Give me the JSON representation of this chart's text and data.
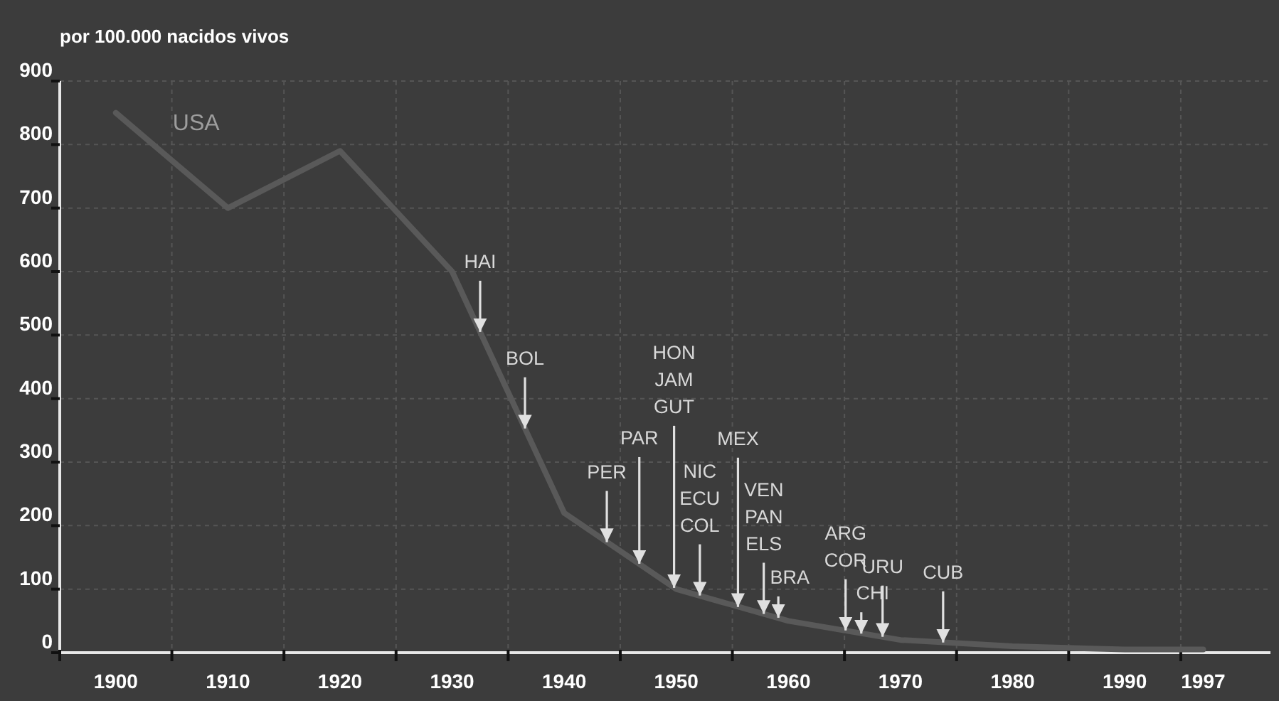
{
  "chart_data": {
    "type": "line",
    "ylabel": "por 100.000 nacidos vivos",
    "x": [
      1900,
      1910,
      1920,
      1930,
      1940,
      1950,
      1960,
      1970,
      1980,
      1990,
      1997
    ],
    "series": [
      {
        "name": "USA",
        "color": "#595959",
        "values": [
          850,
          700,
          790,
          600,
          220,
          100,
          50,
          20,
          10,
          5,
          5
        ]
      }
    ],
    "xlim": [
      1895,
      2003
    ],
    "xticks": [
      {
        "value": 1895,
        "label": null
      },
      {
        "value": 1900,
        "label": "1900"
      },
      {
        "value": 1905,
        "label": null
      },
      {
        "value": 1910,
        "label": "1910"
      },
      {
        "value": 1915,
        "label": null
      },
      {
        "value": 1920,
        "label": "1920"
      },
      {
        "value": 1925,
        "label": null
      },
      {
        "value": 1930,
        "label": "1930"
      },
      {
        "value": 1935,
        "label": null
      },
      {
        "value": 1940,
        "label": "1940"
      },
      {
        "value": 1945,
        "label": null
      },
      {
        "value": 1950,
        "label": "1950"
      },
      {
        "value": 1955,
        "label": null
      },
      {
        "value": 1960,
        "label": "1960"
      },
      {
        "value": 1965,
        "label": null
      },
      {
        "value": 1970,
        "label": "1970"
      },
      {
        "value": 1975,
        "label": null
      },
      {
        "value": 1980,
        "label": "1980"
      },
      {
        "value": 1985,
        "label": null
      },
      {
        "value": 1990,
        "label": "1990"
      },
      {
        "value": 1995,
        "label": null
      },
      {
        "value": 1997,
        "label": "1997"
      }
    ],
    "ylim": [
      0,
      900
    ],
    "yticks": [
      0,
      100,
      200,
      300,
      400,
      500,
      600,
      700,
      800,
      900
    ],
    "grid": true,
    "marker": "none",
    "line_style": "solid",
    "annotations": [
      {
        "text": "HAI",
        "x": 1932.5,
        "y": 505
      },
      {
        "text": "BOL",
        "x": 1936.5,
        "y": 353
      },
      {
        "text": "PER",
        "x": 1943.8,
        "y": 174
      },
      {
        "text": "PAR",
        "x": 1946.7,
        "y": 140
      },
      {
        "text": "HON\nJAM\nGUT",
        "x": 1949.8,
        "y": 102
      },
      {
        "text": "NIC\nECU\nCOL",
        "x": 1952.1,
        "y": 90
      },
      {
        "text": "MEX",
        "x": 1955.5,
        "y": 72
      },
      {
        "text": "VEN\nPAN\nELS",
        "x": 1957.8,
        "y": 61
      },
      {
        "text": "BRA",
        "x": 1959.1,
        "y": 55
      },
      {
        "text": "ARG\nCOR",
        "x": 1965.1,
        "y": 35
      },
      {
        "text": "CHI",
        "x": 1966.5,
        "y": 30
      },
      {
        "text": "URU",
        "x": 1968.4,
        "y": 25
      },
      {
        "text": "CUB",
        "x": 1973.8,
        "y": 16
      }
    ]
  }
}
